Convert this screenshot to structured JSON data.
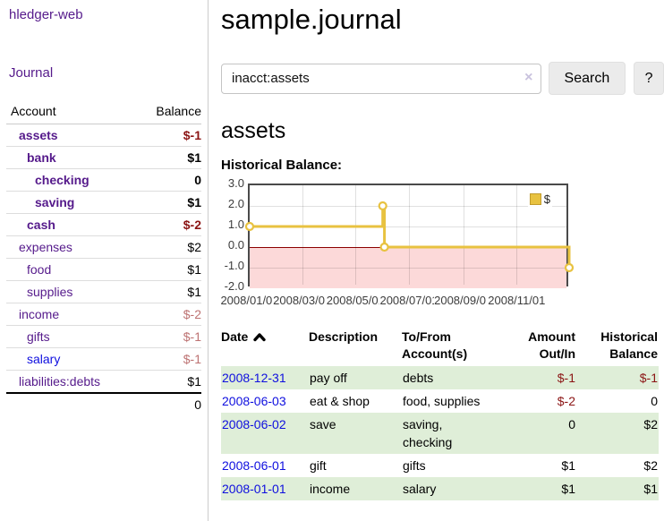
{
  "sidebar": {
    "brand": "hledger-web",
    "nav": {
      "journal": "Journal"
    },
    "table": {
      "account_header": "Account",
      "balance_header": "Balance"
    },
    "accounts": [
      {
        "name": "assets",
        "indent": 1,
        "bold": true,
        "link_color": "purple",
        "balance": "$-1",
        "balance_style": "neg-strong"
      },
      {
        "name": "bank",
        "indent": 2,
        "bold": true,
        "link_color": "purple",
        "balance": "$1",
        "balance_style": "normal"
      },
      {
        "name": "checking",
        "indent": 3,
        "bold": true,
        "link_color": "purple",
        "balance": "0",
        "balance_style": "normal"
      },
      {
        "name": "saving",
        "indent": 3,
        "bold": true,
        "link_color": "purple",
        "balance": "$1",
        "balance_style": "normal"
      },
      {
        "name": "cash",
        "indent": 2,
        "bold": true,
        "link_color": "purple",
        "balance": "$-2",
        "balance_style": "neg-strong"
      },
      {
        "name": "expenses",
        "indent": 1,
        "bold": false,
        "link_color": "purple",
        "balance": "$2",
        "balance_style": "normal"
      },
      {
        "name": "food",
        "indent": 2,
        "bold": false,
        "link_color": "purple",
        "balance": "$1",
        "balance_style": "normal"
      },
      {
        "name": "supplies",
        "indent": 2,
        "bold": false,
        "link_color": "purple",
        "balance": "$1",
        "balance_style": "normal"
      },
      {
        "name": "income",
        "indent": 1,
        "bold": false,
        "link_color": "purple",
        "balance": "$-2",
        "balance_style": "neg-soft"
      },
      {
        "name": "gifts",
        "indent": 2,
        "bold": false,
        "link_color": "purple",
        "balance": "$-1",
        "balance_style": "neg-soft"
      },
      {
        "name": "salary",
        "indent": 2,
        "bold": false,
        "link_color": "blue",
        "balance": "$-1",
        "balance_style": "neg-soft"
      },
      {
        "name": "liabilities:debts",
        "indent": 1,
        "bold": false,
        "link_color": "purple",
        "balance": "$1",
        "balance_style": "normal"
      }
    ],
    "total": "0"
  },
  "main": {
    "title": "sample.journal",
    "search": {
      "value": "inacct:assets",
      "clear_icon": "×",
      "button_label": "Search",
      "help_label": "?"
    },
    "account_heading": "assets"
  },
  "chart_data": {
    "type": "line",
    "title": "Historical Balance:",
    "series": [
      {
        "name": "$",
        "color": "#e8c240",
        "style": "step-left",
        "points": [
          [
            "2008/01/01",
            1
          ],
          [
            "2008/06/01",
            2
          ],
          [
            "2008/06/03",
            0
          ],
          [
            "2008/12/31",
            -1
          ]
        ]
      }
    ],
    "x_range": [
      "2008/01/01",
      "2009/01/01"
    ],
    "xticks": [
      "2008/01/01",
      "2008/03/01",
      "2008/05/01",
      "2008/07/01",
      "2008/09/01",
      "2008/11/01"
    ],
    "yticks": [
      3,
      2,
      1,
      0,
      -1,
      -2
    ],
    "ylim": [
      -2,
      3
    ],
    "grid": true,
    "legend": {
      "position": "top-right",
      "label": "$"
    },
    "negative_region_color": "#fcd9d9",
    "zero_line_color": "#8b0000"
  },
  "register": {
    "headers": [
      "Date",
      "Description",
      "To/From\nAccount(s)",
      "Amount\nOut/In",
      "Historical\nBalance"
    ],
    "sort_icon": "chevron-up",
    "rows": [
      {
        "date": "2008-12-31",
        "description": "pay off",
        "to_from": "debts",
        "amount": "$-1",
        "amount_neg": true,
        "balance": "$-1",
        "balance_neg": true
      },
      {
        "date": "2008-06-03",
        "description": "eat & shop",
        "to_from": "food, supplies",
        "amount": "$-2",
        "amount_neg": true,
        "balance": "0",
        "balance_neg": false
      },
      {
        "date": "2008-06-02",
        "description": "save",
        "to_from": "saving,\nchecking",
        "amount": "0",
        "amount_neg": false,
        "balance": "$2",
        "balance_neg": false
      },
      {
        "date": "2008-06-01",
        "description": "gift",
        "to_from": "gifts",
        "amount": "$1",
        "amount_neg": false,
        "balance": "$2",
        "balance_neg": false
      },
      {
        "date": "2008-01-01",
        "description": "income",
        "to_from": "salary",
        "amount": "$1",
        "amount_neg": false,
        "balance": "$1",
        "balance_neg": false
      }
    ]
  },
  "colors": {
    "link_purple": "#551a8b",
    "link_blue": "#0f0fdf",
    "negative_strong": "#8b1414",
    "negative_soft": "#bd7272",
    "row_green": "#dfeed8",
    "accent_gold": "#e8c240"
  }
}
